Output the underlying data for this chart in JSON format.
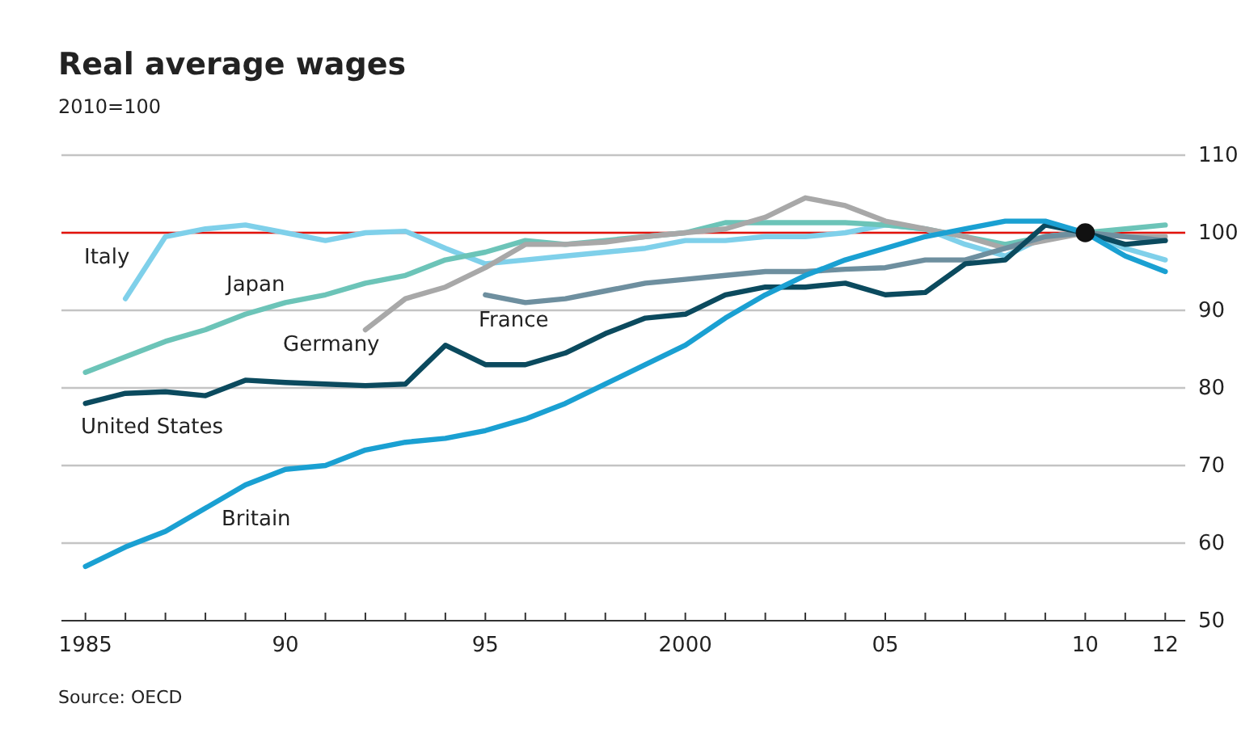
{
  "chart_data": {
    "type": "line",
    "title": "Real average wages",
    "subtitle": "2010=100",
    "annotations": [
      "Source: OECD"
    ],
    "xlim": [
      1984.4,
      2012.5
    ],
    "ylim": [
      50,
      110
    ],
    "yticks": [
      50,
      60,
      70,
      80,
      90,
      100,
      110
    ],
    "xticks": [
      {
        "value": 1985,
        "label": "1985"
      },
      {
        "value": 1986,
        "label": null
      },
      {
        "value": 1987,
        "label": null
      },
      {
        "value": 1988,
        "label": null
      },
      {
        "value": 1989,
        "label": null
      },
      {
        "value": 1990,
        "label": "90"
      },
      {
        "value": 1991,
        "label": null
      },
      {
        "value": 1992,
        "label": null
      },
      {
        "value": 1993,
        "label": null
      },
      {
        "value": 1994,
        "label": null
      },
      {
        "value": 1995,
        "label": "95"
      },
      {
        "value": 1996,
        "label": null
      },
      {
        "value": 1997,
        "label": null
      },
      {
        "value": 1998,
        "label": null
      },
      {
        "value": 1999,
        "label": null
      },
      {
        "value": 2000,
        "label": "2000"
      },
      {
        "value": 2001,
        "label": null
      },
      {
        "value": 2002,
        "label": null
      },
      {
        "value": 2003,
        "label": null
      },
      {
        "value": 2004,
        "label": null
      },
      {
        "value": 2005,
        "label": "05"
      },
      {
        "value": 2006,
        "label": null
      },
      {
        "value": 2007,
        "label": null
      },
      {
        "value": 2008,
        "label": null
      },
      {
        "value": 2009,
        "label": null
      },
      {
        "value": 2010,
        "label": "10"
      },
      {
        "value": 2011,
        "label": null
      },
      {
        "value": 2012,
        "label": "12"
      }
    ],
    "grid": "y",
    "marker": "none",
    "line_style": "solid",
    "ref_lines": [
      {
        "axis": "y",
        "value": 100,
        "label": null,
        "color": "#e3120b"
      }
    ],
    "series": [
      {
        "name": "Italy",
        "color": "#7fd0ea",
        "x": [
          1986,
          1987,
          1988,
          1989,
          1990,
          1991,
          1992,
          1993,
          1994,
          1995,
          1996,
          1997,
          1998,
          1999,
          2000,
          2001,
          2002,
          2003,
          2004,
          2005,
          2006,
          2007,
          2008,
          2009,
          2010,
          2011,
          2012
        ],
        "values": [
          91.5,
          99.5,
          100.5,
          101,
          100,
          99,
          100,
          100.2,
          98,
          96,
          96.5,
          97,
          97.5,
          98,
          99,
          99,
          99.5,
          99.5,
          100,
          101,
          100.5,
          98.5,
          97,
          99.5,
          100,
          98,
          96.5
        ]
      },
      {
        "name": "Japan",
        "color": "#6cc4b8",
        "x": [
          1985,
          1986,
          1987,
          1988,
          1989,
          1990,
          1991,
          1992,
          1993,
          1994,
          1995,
          1996,
          1997,
          1998,
          1999,
          2000,
          2001,
          2002,
          2003,
          2004,
          2005,
          2006,
          2007,
          2008,
          2009,
          2010,
          2011,
          2012
        ],
        "values": [
          82,
          84,
          86,
          87.5,
          89.5,
          91,
          92,
          93.5,
          94.5,
          96.5,
          97.5,
          99,
          98.5,
          99,
          99.5,
          100,
          101.3,
          101.3,
          101.3,
          101.3,
          101,
          100.5,
          99.5,
          98.5,
          99.5,
          100,
          100.5,
          101
        ]
      },
      {
        "name": "Germany",
        "color": "#a8a8a8",
        "x": [
          1992,
          1993,
          1994,
          1995,
          1996,
          1997,
          1998,
          1999,
          2000,
          2001,
          2002,
          2003,
          2004,
          2005,
          2006,
          2007,
          2008,
          2009,
          2010,
          2011,
          2012
        ],
        "values": [
          87.5,
          91.5,
          93,
          95.5,
          98.5,
          98.5,
          98.8,
          99.5,
          100,
          100.5,
          102,
          104.5,
          103.5,
          101.5,
          100.5,
          99.5,
          98,
          99,
          100,
          99.5,
          99.5
        ]
      },
      {
        "name": "France",
        "color": "#6e8f9f",
        "x": [
          1995,
          1996,
          1997,
          1998,
          1999,
          2000,
          2001,
          2002,
          2003,
          2004,
          2005,
          2006,
          2007,
          2008,
          2009,
          2010,
          2011,
          2012
        ],
        "values": [
          92,
          91,
          91.5,
          92.5,
          93.5,
          94,
          94.5,
          95,
          95,
          95.3,
          95.5,
          96.5,
          96.5,
          98,
          99.5,
          100,
          99.5,
          99
        ]
      },
      {
        "name": "United States",
        "color": "#0b4a5e",
        "x": [
          1985,
          1986,
          1987,
          1988,
          1989,
          1990,
          1991,
          1992,
          1993,
          1994,
          1995,
          1996,
          1997,
          1998,
          1999,
          2000,
          2001,
          2002,
          2003,
          2004,
          2005,
          2006,
          2007,
          2008,
          2009,
          2010,
          2011,
          2012
        ],
        "values": [
          78,
          79.3,
          79.5,
          79,
          81,
          80.7,
          80.5,
          80.3,
          80.5,
          85.5,
          83,
          83,
          84.5,
          87,
          89,
          89.5,
          92,
          93,
          93,
          93.5,
          92,
          92.3,
          96,
          96.5,
          101,
          100,
          98.5,
          99
        ]
      },
      {
        "name": "Britain",
        "color": "#1aa0d2",
        "x": [
          1985,
          1986,
          1987,
          1988,
          1989,
          1990,
          1991,
          1992,
          1993,
          1994,
          1995,
          1996,
          1997,
          1998,
          1999,
          2000,
          2001,
          2002,
          2003,
          2004,
          2005,
          2006,
          2007,
          2008,
          2009,
          2010,
          2011,
          2012
        ],
        "values": [
          57,
          59.5,
          61.5,
          64.5,
          67.5,
          69.5,
          70,
          72,
          73,
          73.5,
          74.5,
          76,
          78,
          80.5,
          83,
          85.5,
          89,
          92,
          94.5,
          96.5,
          98,
          99.5,
          100.5,
          101.5,
          101.5,
          100,
          97,
          95
        ]
      },
      {
        "type": "scatter",
        "color": "#111111",
        "marker": "circle",
        "x": [
          2010
        ],
        "values": [
          100
        ]
      }
    ]
  }
}
